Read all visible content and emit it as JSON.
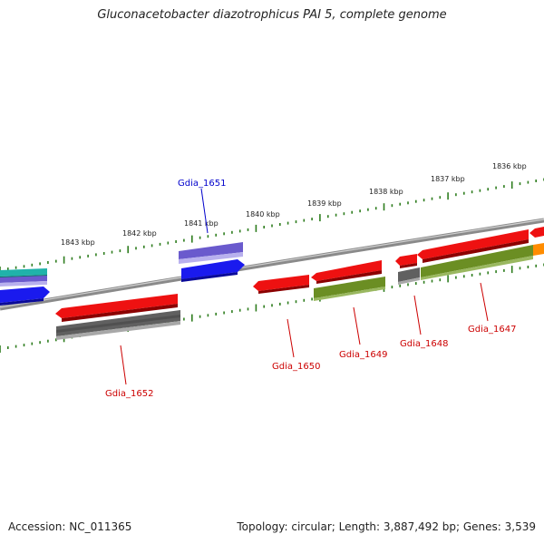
{
  "title": "Gluconacetobacter diazotrophicus PAI 5, complete genome",
  "footer": {
    "accession": "Accession: NC_011365",
    "summary": "Topology: circular; Length: 3,887,492 bp; Genes: 3,539"
  },
  "colors": {
    "backbone": "#8a8a8a",
    "tick": "#2e7d1e",
    "red_gene": "#ee1111",
    "gray_gene": "#606060",
    "olive_gene": "#6b8e23",
    "blue_gene": "#1a1aee",
    "purple_gene": "#6a5acd",
    "cyan_gene": "#20b2aa",
    "orange_gene": "#ff8c00",
    "label_red": "#cc0000",
    "label_blue": "#0000cc"
  },
  "scale_labels": [
    "1843 kbp",
    "1842 kbp",
    "1841 kbp",
    "1840 kbp",
    "1839 kbp",
    "1838 kbp",
    "1837 kbp",
    "1836 kbp"
  ],
  "gene_labels": [
    {
      "name": "Gdia_1651",
      "color": "blue"
    },
    {
      "name": "Gdia_1652",
      "color": "red"
    },
    {
      "name": "Gdia_1650",
      "color": "red"
    },
    {
      "name": "Gdia_1649",
      "color": "red"
    },
    {
      "name": "Gdia_1648",
      "color": "red"
    },
    {
      "name": "Gdia_1647",
      "color": "red"
    }
  ]
}
